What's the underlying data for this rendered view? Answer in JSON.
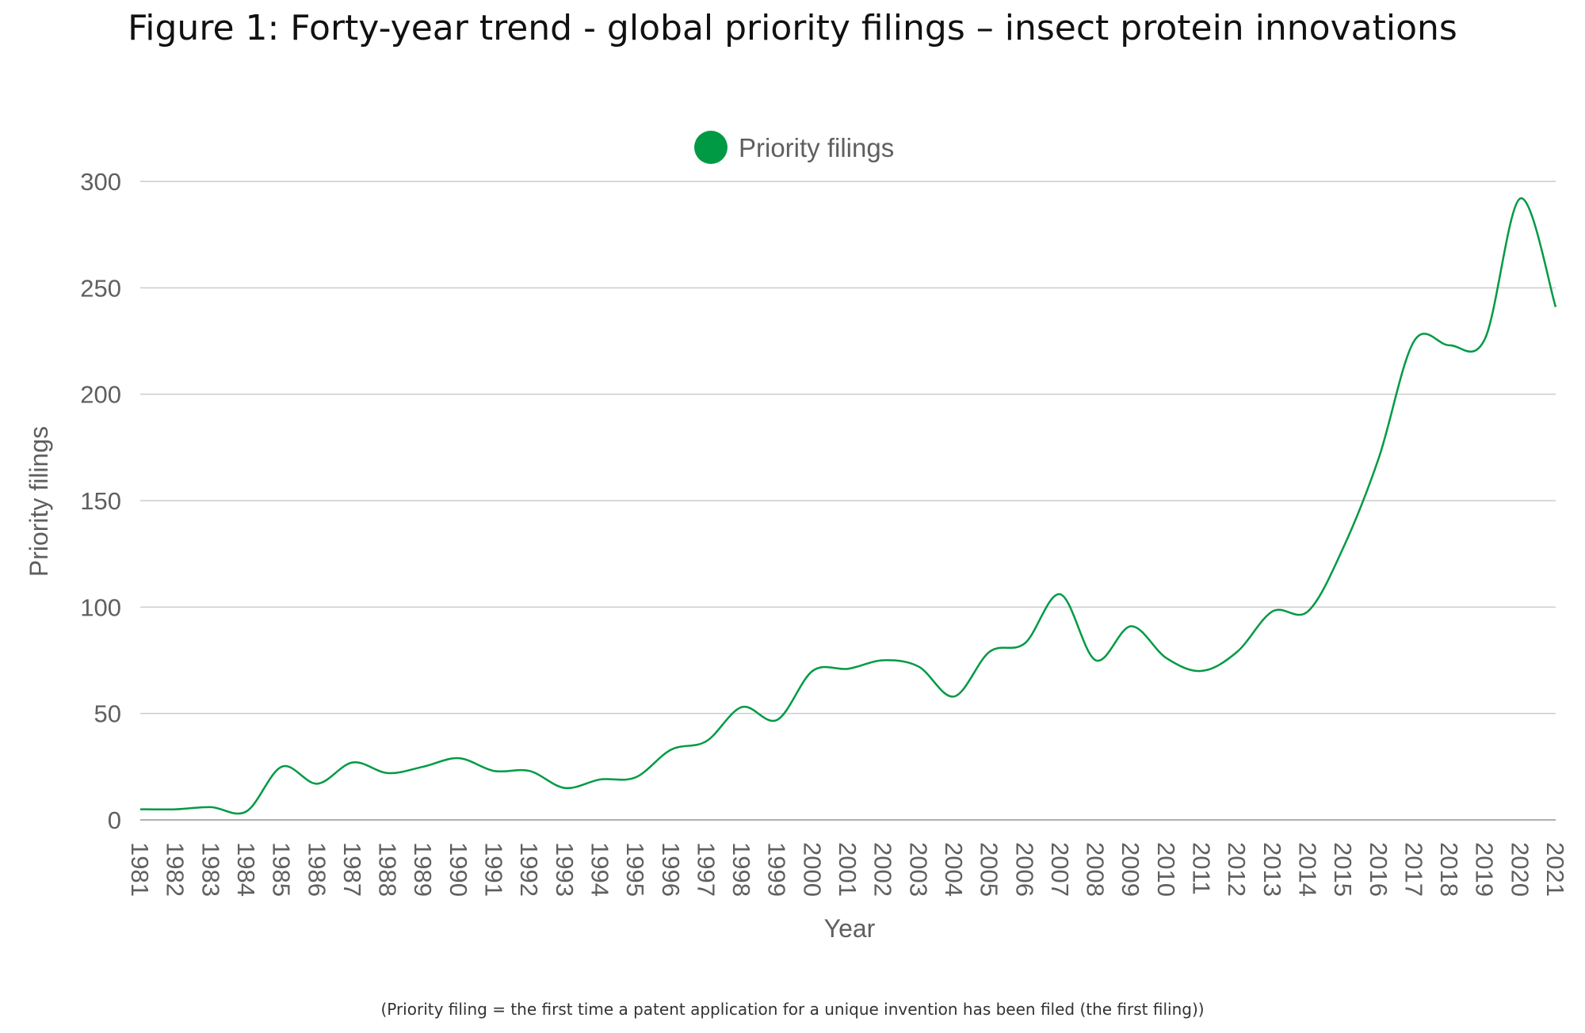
{
  "figure": {
    "title": "Figure 1: Forty-year trend - global priority filings – insect protein innovations",
    "footnote": "(Priority filing = the first time a patent application for a unique invention has been filed (the first filing))"
  },
  "colors": {
    "series": "#009a44",
    "grid": "#cccccc",
    "axis": "#b0b0b0",
    "text": "#5f5f5f"
  },
  "chart_data": {
    "type": "line",
    "title": "Figure 1: Forty-year trend - global priority filings – insect protein innovations",
    "xlabel": "Year",
    "ylabel": "Priority filings",
    "ylim": [
      0,
      300
    ],
    "yticks": [
      0,
      50,
      100,
      150,
      200,
      250,
      300
    ],
    "grid": true,
    "legend_position": "top-center",
    "categories": [
      "1981",
      "1982",
      "1983",
      "1984",
      "1985",
      "1986",
      "1987",
      "1988",
      "1989",
      "1990",
      "1991",
      "1992",
      "1993",
      "1994",
      "1995",
      "1996",
      "1997",
      "1998",
      "1999",
      "2000",
      "2001",
      "2002",
      "2003",
      "2004",
      "2005",
      "2006",
      "2007",
      "2008",
      "2009",
      "2010",
      "2011",
      "2012",
      "2013",
      "2014",
      "2015",
      "2016",
      "2017",
      "2018",
      "2019",
      "2020",
      "2021"
    ],
    "series": [
      {
        "name": "Priority filings",
        "values": [
          5,
          5,
          6,
          4,
          25,
          17,
          27,
          22,
          25,
          29,
          23,
          23,
          15,
          19,
          20,
          33,
          37,
          53,
          47,
          70,
          71,
          75,
          72,
          58,
          79,
          83,
          106,
          75,
          91,
          76,
          70,
          79,
          98,
          98,
          128,
          170,
          225,
          223,
          226,
          292,
          241
        ]
      }
    ]
  }
}
